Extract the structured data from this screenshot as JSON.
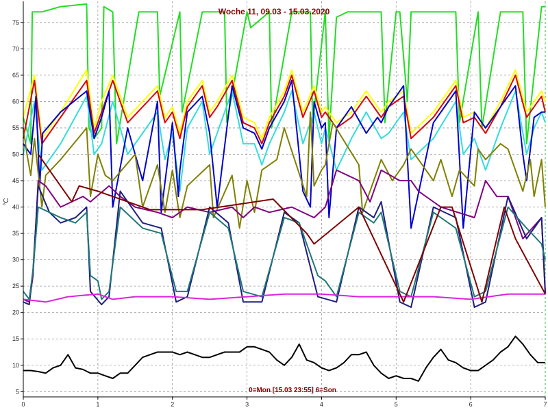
{
  "chart_data": {
    "type": "line",
    "title": "Woche 11, 09.03 - 15.03.2020",
    "footer": "0=Mon [15.03 23:55] 6=Son",
    "ylabel": "°C",
    "xlabel": "",
    "xlim": [
      0,
      7
    ],
    "ylim": [
      4,
      79
    ],
    "x_ticks": [
      "0",
      "1",
      "2",
      "3",
      "4",
      "5",
      "6",
      "7"
    ],
    "y_ticks": [
      "5",
      "10",
      "15",
      "20",
      "25",
      "30",
      "35",
      "40",
      "45",
      "50",
      "55",
      "60",
      "65",
      "70",
      "75"
    ],
    "grid": true,
    "legend": "none",
    "series": [
      {
        "color": "#22dd22",
        "x": [
          0,
          0.1,
          0.12,
          0.25,
          0.5,
          0.85,
          0.88,
          0.95,
          1.05,
          1.08,
          1.2,
          1.25,
          1.55,
          1.8,
          1.83,
          2.1,
          2.13,
          2.4,
          2.7,
          2.73,
          3.0,
          3.05,
          3.3,
          3.33,
          3.6,
          3.85,
          3.88,
          4.05,
          4.1,
          4.2,
          4.35,
          4.5,
          4.8,
          4.85,
          5.0,
          5.05,
          5.15,
          5.2,
          5.5,
          5.8,
          5.85,
          6.1,
          6.15,
          6.4,
          6.7,
          6.75,
          6.95,
          7.0
        ],
        "y": [
          57,
          52,
          77,
          77,
          78,
          78.5,
          55,
          53,
          55,
          78,
          77,
          52,
          77,
          77,
          61,
          77,
          58,
          77,
          77,
          56,
          77,
          74,
          77,
          55,
          77,
          77,
          56,
          77,
          53,
          76,
          77,
          77,
          77,
          56,
          77,
          77,
          60,
          77,
          77,
          77,
          56,
          77,
          55,
          77,
          77,
          52,
          78,
          78
        ]
      },
      {
        "color": "#ffff00",
        "x": [
          0,
          0.15,
          0.25,
          0.5,
          0.85,
          0.95,
          1.05,
          1.2,
          1.4,
          1.8,
          1.9,
          2.0,
          2.1,
          2.2,
          2.4,
          2.5,
          2.6,
          2.8,
          2.95,
          3.1,
          3.2,
          3.3,
          3.5,
          3.6,
          3.75,
          3.9,
          4.0,
          4.05,
          4.2,
          4.4,
          4.6,
          4.8,
          4.9,
          5.1,
          5.2,
          5.5,
          5.8,
          5.9,
          6.05,
          6.2,
          6.4,
          6.6,
          6.75,
          6.85,
          6.95,
          7.0
        ],
        "y": [
          57,
          65,
          53,
          58,
          66,
          55,
          60,
          65,
          57,
          63,
          57,
          59,
          54,
          60,
          64,
          58,
          60,
          65,
          57,
          56,
          53,
          57,
          62,
          66,
          58,
          63,
          58,
          59,
          56,
          58,
          62,
          58,
          60,
          62,
          54,
          58,
          64,
          57,
          58,
          55,
          60,
          66,
          58,
          60,
          62,
          60
        ]
      },
      {
        "color": "#dd0000",
        "x": [
          0,
          0.15,
          0.25,
          0.5,
          0.85,
          0.95,
          1.05,
          1.2,
          1.4,
          1.8,
          1.9,
          2.0,
          2.1,
          2.2,
          2.4,
          2.5,
          2.6,
          2.8,
          2.95,
          3.1,
          3.2,
          3.3,
          3.5,
          3.6,
          3.75,
          3.9,
          4.0,
          4.05,
          4.2,
          4.4,
          4.6,
          4.8,
          4.9,
          5.1,
          5.2,
          5.5,
          5.8,
          5.9,
          6.05,
          6.2,
          6.4,
          6.6,
          6.75,
          6.85,
          6.95,
          7.0
        ],
        "y": [
          53,
          64,
          52,
          57,
          64,
          54,
          58,
          64,
          56,
          62,
          56,
          58,
          53,
          59,
          63,
          57,
          59,
          64,
          56,
          55,
          52,
          56,
          61,
          65,
          57,
          62,
          57,
          58,
          55,
          57,
          61,
          57,
          59,
          61,
          53,
          57,
          63,
          56,
          57,
          54,
          59,
          65,
          57,
          59,
          61,
          58
        ]
      },
      {
        "color": "#33dddd",
        "x": [
          0,
          0.15,
          0.25,
          0.5,
          0.85,
          0.95,
          1.05,
          1.2,
          1.4,
          1.8,
          1.9,
          2.0,
          2.1,
          2.2,
          2.4,
          2.5,
          2.6,
          2.8,
          2.95,
          3.1,
          3.2,
          3.3,
          3.5,
          3.6,
          3.75,
          3.9,
          4.0,
          4.05,
          4.2,
          4.4,
          4.6,
          4.8,
          4.9,
          5.1,
          5.2,
          5.5,
          5.8,
          5.9,
          6.05,
          6.2,
          6.4,
          6.6,
          6.75,
          6.85,
          6.95,
          7.0
        ],
        "y": [
          50,
          60,
          47,
          52,
          61,
          50,
          52,
          60,
          50,
          58,
          49,
          54,
          43,
          55,
          60,
          50,
          54,
          62,
          52,
          52,
          48,
          52,
          58,
          62,
          52,
          58,
          52,
          55,
          47,
          53,
          58,
          53,
          54,
          58,
          49,
          53,
          60,
          50,
          53,
          47,
          55,
          62,
          50,
          55,
          58,
          56
        ]
      },
      {
        "color": "#0000cc",
        "x": [
          0,
          0.1,
          0.17,
          0.22,
          0.26,
          0.5,
          0.85,
          0.95,
          1.05,
          1.15,
          1.2,
          1.4,
          1.6,
          1.8,
          1.85,
          2.0,
          2.08,
          2.1,
          2.2,
          2.4,
          2.5,
          2.6,
          2.8,
          2.95,
          3.1,
          3.2,
          3.3,
          3.5,
          3.6,
          3.75,
          3.85,
          3.9,
          4.0,
          4.05,
          4.1,
          4.2,
          4.4,
          4.6,
          4.75,
          4.8,
          4.9,
          5.1,
          5.2,
          5.5,
          5.8,
          5.9,
          6.05,
          6.2,
          6.4,
          6.6,
          6.7,
          6.75,
          6.85,
          6.95,
          7.0
        ],
        "y": [
          52,
          50,
          61,
          44,
          54,
          58,
          62,
          53,
          57,
          62,
          40,
          55,
          45,
          60,
          39,
          56,
          42,
          47,
          58,
          61,
          54,
          40,
          63,
          55,
          54,
          51,
          55,
          60,
          64,
          43,
          40,
          60,
          55,
          56,
          38,
          55,
          59,
          54,
          57,
          56,
          59,
          63,
          36,
          56,
          62,
          36,
          58,
          55,
          59,
          63,
          50,
          45,
          57,
          58,
          58
        ]
      },
      {
        "color": "#808000",
        "x": [
          0,
          0.05,
          0.1,
          0.15,
          0.25,
          0.3,
          0.5,
          0.85,
          0.9,
          1.0,
          1.1,
          1.2,
          1.5,
          1.6,
          1.8,
          1.9,
          2.0,
          2.1,
          2.2,
          2.5,
          2.55,
          2.8,
          2.9,
          3.0,
          3.1,
          3.2,
          3.4,
          3.5,
          3.8,
          3.85,
          3.9,
          4.0,
          4.05,
          4.15,
          4.5,
          4.55,
          4.8,
          4.95,
          5.1,
          5.2,
          5.5,
          5.6,
          5.75,
          5.85,
          6.05,
          6.1,
          6.2,
          6.4,
          6.5,
          6.7,
          6.8,
          6.85,
          6.95,
          7.0
        ],
        "y": [
          55,
          50,
          46,
          53,
          40,
          46,
          49,
          55,
          42,
          50,
          46,
          45,
          50,
          40,
          48,
          39,
          47,
          38,
          44,
          48,
          38,
          46,
          36,
          45,
          39,
          47,
          49,
          55,
          42,
          58,
          44,
          47,
          48,
          56,
          48,
          39,
          49,
          45,
          48,
          51,
          45,
          49,
          42,
          47,
          44,
          51,
          49,
          52,
          51,
          43,
          49,
          42,
          49,
          40
        ]
      },
      {
        "color": "#800080",
        "x": [
          0,
          0.08,
          0.13,
          0.2,
          0.3,
          0.5,
          0.8,
          0.9,
          1.15,
          1.3,
          1.5,
          1.8,
          2.0,
          2.2,
          2.5,
          2.8,
          2.95,
          3.1,
          3.3,
          3.6,
          3.9,
          4.05,
          4.2,
          4.5,
          4.65,
          4.8,
          5.05,
          5.2,
          5.3,
          5.6,
          6.05,
          6.2,
          6.35,
          6.5,
          6.7,
          6.95,
          7.0
        ],
        "y": [
          22.5,
          22,
          27,
          45,
          44,
          40,
          42,
          41,
          44,
          42,
          40,
          39,
          38,
          40,
          39,
          40,
          38,
          40,
          39,
          40,
          38,
          40,
          47,
          45,
          41,
          47,
          45,
          45,
          43,
          40,
          38,
          45,
          42,
          42,
          34,
          38,
          24
        ]
      },
      {
        "color": "#1e1e80",
        "x": [
          0,
          0.08,
          0.13,
          0.2,
          0.35,
          0.5,
          0.7,
          0.85,
          0.9,
          1.05,
          1.15,
          1.3,
          1.6,
          1.85,
          2.05,
          2.2,
          2.5,
          2.75,
          2.95,
          3.2,
          3.5,
          3.7,
          3.95,
          4.2,
          4.5,
          4.7,
          4.8,
          5.05,
          5.2,
          5.5,
          5.8,
          6.05,
          6.2,
          6.5,
          6.75,
          6.95,
          7.0
        ],
        "y": [
          22,
          21.5,
          28,
          44,
          39,
          37,
          38,
          40,
          24,
          21.5,
          23,
          43,
          37,
          36,
          22,
          23,
          40,
          37,
          22,
          22,
          39,
          37,
          23,
          22,
          40,
          38,
          41,
          22,
          21,
          40,
          38,
          21,
          22,
          42,
          34,
          38,
          23.5
        ]
      },
      {
        "color": "#207878",
        "x": [
          0,
          0.08,
          0.13,
          0.2,
          0.35,
          0.5,
          0.7,
          0.85,
          0.9,
          1.0,
          1.05,
          1.15,
          1.3,
          1.6,
          1.85,
          2.05,
          2.2,
          2.5,
          2.75,
          2.95,
          3.2,
          3.5,
          3.7,
          3.95,
          4.05,
          4.2,
          4.5,
          4.7,
          4.8,
          5.05,
          5.2,
          5.5,
          5.8,
          6.05,
          6.2,
          6.5,
          6.75,
          6.95,
          7.0
        ],
        "y": [
          24,
          22.5,
          28,
          40,
          39,
          38,
          37,
          39,
          27,
          26,
          22.5,
          24,
          40,
          36,
          35,
          24,
          24,
          39,
          36,
          24,
          23,
          38,
          37,
          27,
          26,
          23,
          39,
          37,
          39,
          24,
          23,
          39,
          36,
          23,
          24,
          40,
          36,
          33,
          30
        ]
      },
      {
        "color": "#dd22dd",
        "x": [
          0,
          0.3,
          0.6,
          1.0,
          1.2,
          1.5,
          2.0,
          2.5,
          3.0,
          3.5,
          4.0,
          4.5,
          5.0,
          5.5,
          6.0,
          6.5,
          7.0
        ],
        "y": [
          22.5,
          22,
          23,
          23.5,
          22.5,
          23,
          23,
          22.5,
          23,
          23.5,
          23.5,
          23,
          23,
          23,
          22.5,
          23.5,
          23.5
        ]
      },
      {
        "color": "#800000",
        "x": [
          0.2,
          0.65,
          0.75,
          1.0,
          1.7,
          2.4,
          3.35,
          3.8,
          3.9,
          4.5,
          5.1,
          5.6,
          5.75,
          6.15,
          6.45,
          6.6,
          7.0
        ],
        "y": [
          50,
          41,
          44,
          43,
          39.5,
          39.5,
          41.5,
          35,
          33,
          40,
          22,
          40,
          40,
          22,
          40,
          34,
          23.5
        ]
      },
      {
        "color": "#000000",
        "x": [
          0,
          0.1,
          0.2,
          0.3,
          0.4,
          0.5,
          0.6,
          0.7,
          0.8,
          0.9,
          1.0,
          1.1,
          1.2,
          1.3,
          1.4,
          1.5,
          1.6,
          1.7,
          1.8,
          1.9,
          2.0,
          2.1,
          2.2,
          2.3,
          2.4,
          2.5,
          2.6,
          2.7,
          2.8,
          2.9,
          3.0,
          3.1,
          3.2,
          3.3,
          3.4,
          3.5,
          3.6,
          3.7,
          3.8,
          3.9,
          4.0,
          4.1,
          4.2,
          4.3,
          4.4,
          4.5,
          4.6,
          4.7,
          4.8,
          4.9,
          5.0,
          5.1,
          5.2,
          5.3,
          5.4,
          5.5,
          5.6,
          5.7,
          5.8,
          5.9,
          6.0,
          6.1,
          6.2,
          6.3,
          6.4,
          6.5,
          6.6,
          6.7,
          6.8,
          6.9,
          7.0
        ],
        "y": [
          9,
          9,
          8.8,
          8.5,
          9.5,
          10,
          12,
          9.5,
          9.2,
          8.5,
          8.5,
          8,
          7.5,
          8.5,
          8.5,
          10,
          11.5,
          12,
          12.5,
          12.5,
          12.5,
          12,
          12.5,
          12,
          11.5,
          11.5,
          12,
          12.5,
          12.5,
          12.5,
          13.5,
          13.5,
          13,
          12.5,
          11,
          10,
          11.5,
          14,
          11,
          10.5,
          9.5,
          9,
          9.5,
          10.5,
          12,
          12,
          12.5,
          10,
          8.5,
          7.5,
          8,
          7.5,
          7.5,
          7,
          9.5,
          11.5,
          13,
          11,
          10.5,
          9.5,
          9,
          9,
          10,
          11,
          12.5,
          13.5,
          15.5,
          14,
          12,
          10.5,
          10.5
        ]
      }
    ]
  }
}
